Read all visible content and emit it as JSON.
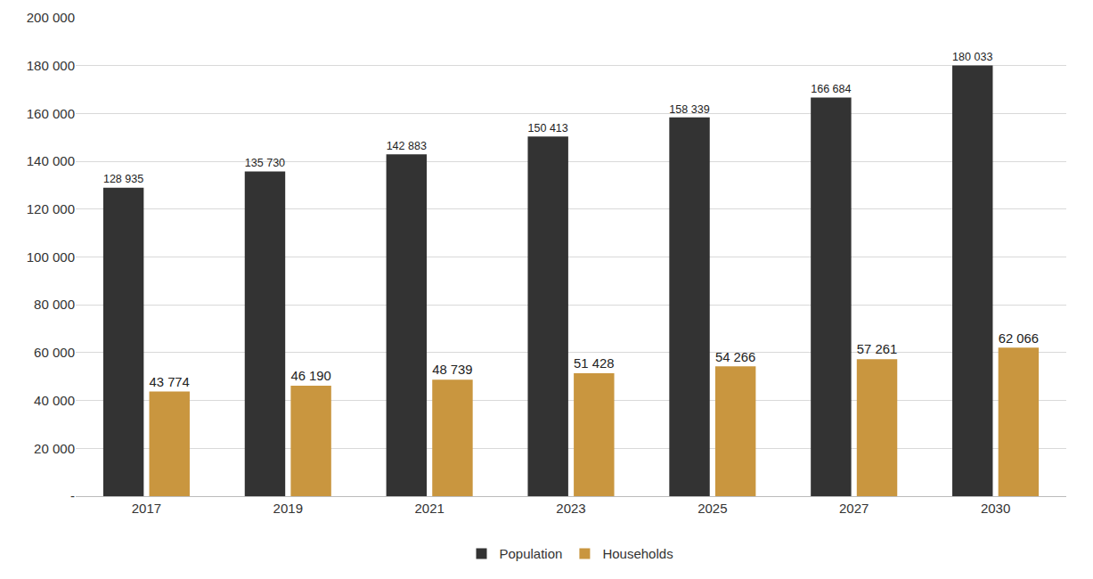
{
  "chart_data": {
    "type": "bar",
    "categories": [
      "2017",
      "2019",
      "2021",
      "2023",
      "2025",
      "2027",
      "2030"
    ],
    "series": [
      {
        "name": "Population",
        "color": "#333333",
        "values": [
          128935,
          135730,
          142883,
          150413,
          158339,
          166684,
          180033
        ],
        "value_labels": [
          "128 935",
          "135 730",
          "142 883",
          "150 413",
          "158 339",
          "166 684",
          "180 033"
        ]
      },
      {
        "name": "Households",
        "color": "#c9963f",
        "values": [
          43774,
          46190,
          48739,
          51428,
          54266,
          57261,
          62066
        ],
        "value_labels": [
          "43 774",
          "46 190",
          "48 739",
          "51 428",
          "54 266",
          "57 261",
          "62 066"
        ]
      }
    ],
    "ylim": [
      0,
      200000
    ],
    "yticks": [
      {
        "value": 0,
        "label": "-"
      },
      {
        "value": 20000,
        "label": "20 000"
      },
      {
        "value": 40000,
        "label": "40 000"
      },
      {
        "value": 60000,
        "label": "60 000"
      },
      {
        "value": 80000,
        "label": "80 000"
      },
      {
        "value": 100000,
        "label": "100 000"
      },
      {
        "value": 120000,
        "label": "120 000"
      },
      {
        "value": 140000,
        "label": "140 000"
      },
      {
        "value": 160000,
        "label": "160 000"
      },
      {
        "value": 180000,
        "label": "180 000"
      },
      {
        "value": 200000,
        "label": "200 000"
      }
    ],
    "grid": true,
    "legend": "bottom",
    "data_labels": true
  }
}
